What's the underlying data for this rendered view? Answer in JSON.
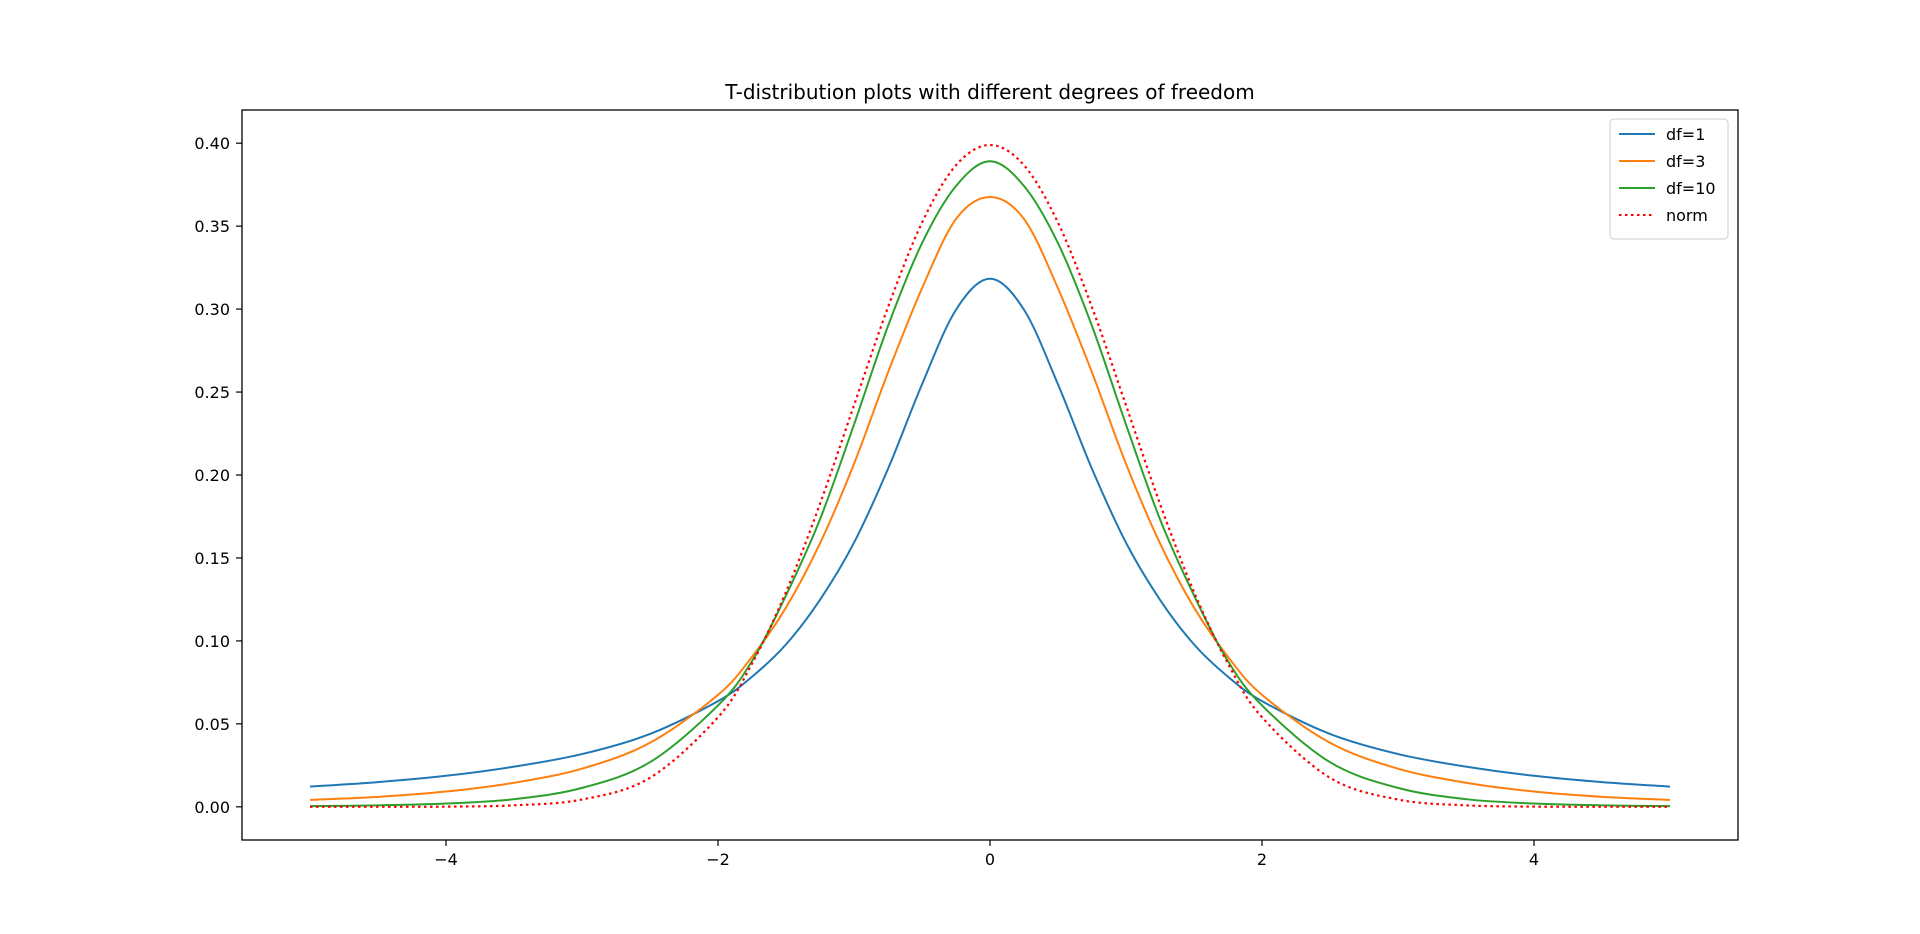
{
  "chart_data": {
    "type": "line",
    "title": "T-distribution plots with different degrees of freedom",
    "xlabel": "",
    "ylabel": "",
    "xlim": [
      -5.5,
      5.5
    ],
    "ylim": [
      -0.02,
      0.42
    ],
    "x_ticks": [
      -4,
      -2,
      0,
      2,
      4
    ],
    "x_tick_labels": [
      "−4",
      "−2",
      "0",
      "2",
      "4"
    ],
    "y_ticks": [
      0.0,
      0.05,
      0.1,
      0.15,
      0.2,
      0.25,
      0.3,
      0.35,
      0.4
    ],
    "y_tick_labels": [
      "0.00",
      "0.05",
      "0.10",
      "0.15",
      "0.20",
      "0.25",
      "0.30",
      "0.35",
      "0.40"
    ],
    "grid": false,
    "legend_position": "top-right",
    "x": [
      -5,
      -4.5,
      -4,
      -3.5,
      -3,
      -2.5,
      -2,
      -1.75,
      -1.5,
      -1.25,
      -1,
      -0.75,
      -0.5,
      -0.25,
      0,
      0.25,
      0.5,
      0.75,
      1,
      1.25,
      1.5,
      1.75,
      2,
      2.5,
      3,
      3.5,
      4,
      4.5,
      5
    ],
    "series": [
      {
        "name": "df=1",
        "color": "#1f77b4",
        "style": "solid",
        "values": [
          0.0122,
          0.0149,
          0.0187,
          0.0242,
          0.0318,
          0.0439,
          0.0637,
          0.0784,
          0.0979,
          0.1248,
          0.1592,
          0.2037,
          0.2546,
          0.2996,
          0.3183,
          0.2996,
          0.2546,
          0.2037,
          0.1592,
          0.1248,
          0.0979,
          0.0784,
          0.0637,
          0.0439,
          0.0318,
          0.0242,
          0.0187,
          0.0149,
          0.0122
        ]
      },
      {
        "name": "df=3",
        "color": "#ff7f0e",
        "style": "solid",
        "values": [
          0.0042,
          0.006,
          0.0092,
          0.0145,
          0.023,
          0.0386,
          0.0675,
          0.0904,
          0.1201,
          0.1588,
          0.2067,
          0.2618,
          0.3125,
          0.3543,
          0.3676,
          0.3543,
          0.3125,
          0.2618,
          0.2067,
          0.1588,
          0.1201,
          0.0904,
          0.0675,
          0.0386,
          0.023,
          0.0145,
          0.0092,
          0.006,
          0.0042
        ]
      },
      {
        "name": "df=10",
        "color": "#2ca02c",
        "style": "solid",
        "values": [
          0.0004,
          0.0009,
          0.002,
          0.0046,
          0.0114,
          0.0269,
          0.0611,
          0.0878,
          0.1274,
          0.1733,
          0.2304,
          0.2898,
          0.3397,
          0.3742,
          0.3891,
          0.3742,
          0.3397,
          0.2898,
          0.2304,
          0.1733,
          0.1274,
          0.0878,
          0.0611,
          0.0269,
          0.0114,
          0.0046,
          0.002,
          0.0009,
          0.0004
        ]
      },
      {
        "name": "norm",
        "color": "#ff0000",
        "style": "dotted",
        "values": [
          0.0,
          0.0,
          0.0001,
          0.0009,
          0.0044,
          0.0175,
          0.054,
          0.0863,
          0.1295,
          0.1826,
          0.242,
          0.3011,
          0.3521,
          0.3867,
          0.3989,
          0.3867,
          0.3521,
          0.3011,
          0.242,
          0.1826,
          0.1295,
          0.0863,
          0.054,
          0.0175,
          0.0044,
          0.0009,
          0.0001,
          0.0,
          0.0
        ]
      }
    ]
  }
}
